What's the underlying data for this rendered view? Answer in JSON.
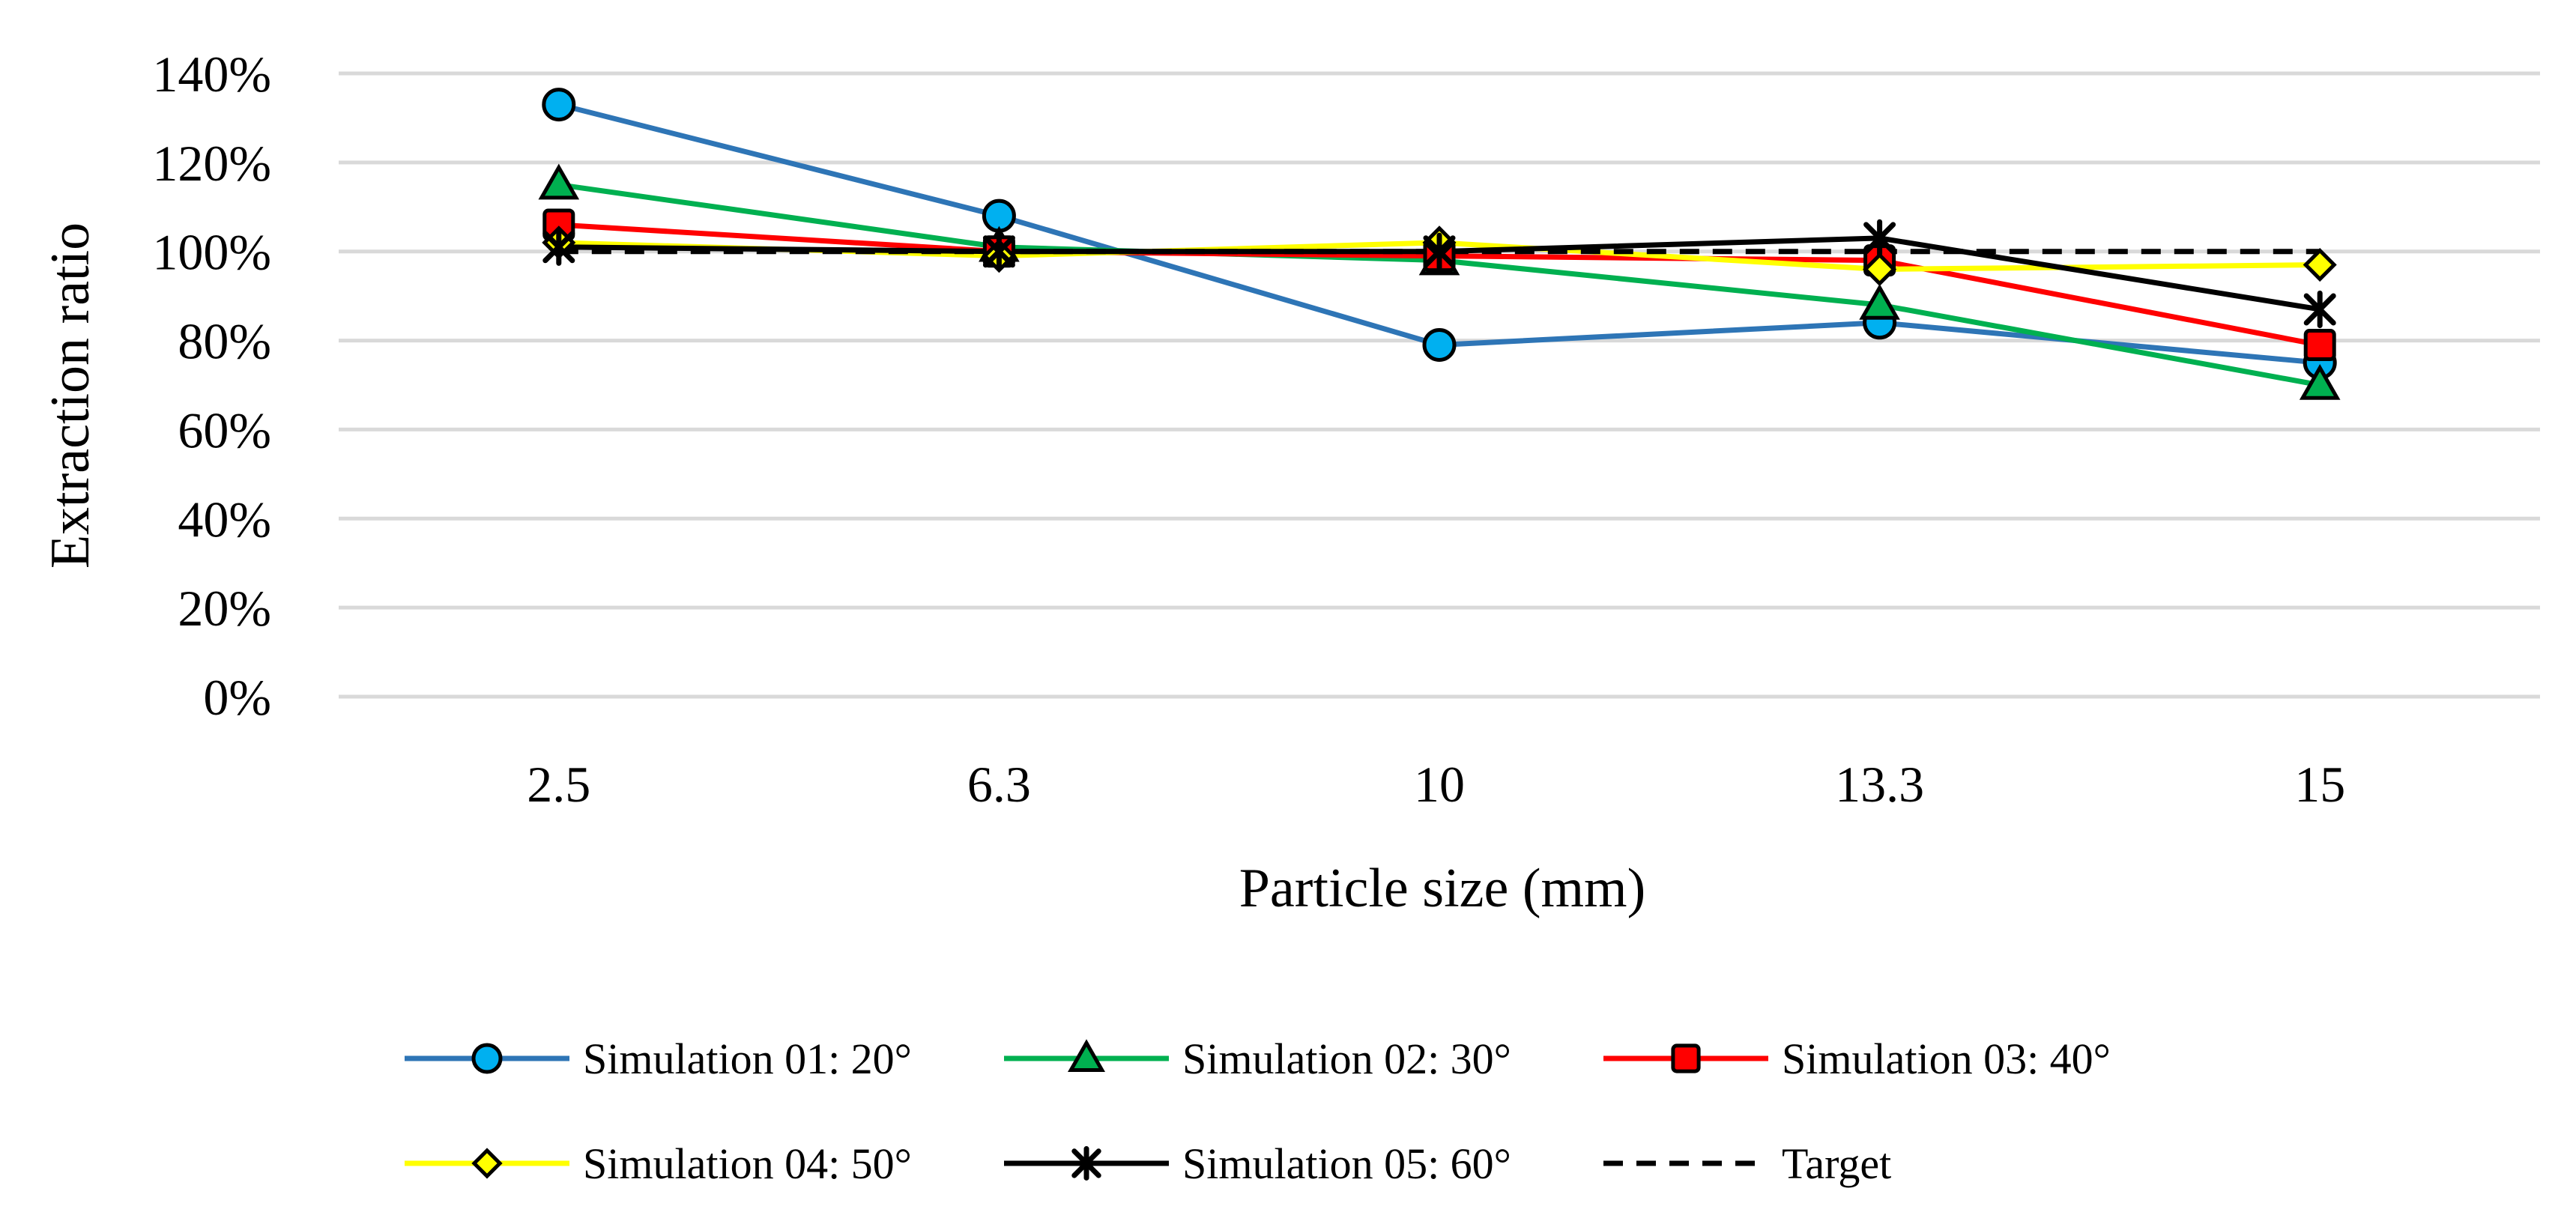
{
  "chart_data": {
    "type": "line",
    "title": "",
    "xlabel": "Particle size (mm)",
    "ylabel": "Extraction ratio",
    "categories": [
      "2.5",
      "6.3",
      "10",
      "13.3",
      "15"
    ],
    "ylim": [
      0,
      140
    ],
    "yticks": [
      0,
      20,
      40,
      60,
      80,
      100,
      120,
      140
    ],
    "ytick_labels": [
      "0%",
      "20%",
      "40%",
      "60%",
      "80%",
      "100%",
      "120%",
      "140%"
    ],
    "grid": true,
    "legend_position": "bottom",
    "series": [
      {
        "name": "Simulation 01: 20°",
        "color": "#2e75b6",
        "marker": "circle",
        "marker_color": "#00b0f0",
        "dashed": false,
        "values": [
          133,
          108,
          79,
          84,
          75
        ]
      },
      {
        "name": "Simulation 02: 30°",
        "color": "#00b050",
        "marker": "triangle",
        "marker_color": "#00b050",
        "dashed": false,
        "values": [
          115,
          101,
          98,
          88,
          70
        ]
      },
      {
        "name": "Simulation 03: 40°",
        "color": "#ff0000",
        "marker": "square",
        "marker_color": "#ff0000",
        "dashed": false,
        "values": [
          106,
          100,
          99,
          98,
          79
        ]
      },
      {
        "name": "Simulation 04: 50°",
        "color": "#ffff00",
        "marker": "diamond",
        "marker_color": "#ffff00",
        "dashed": false,
        "values": [
          102,
          99,
          102,
          96,
          97
        ]
      },
      {
        "name": "Simulation 05: 60°",
        "color": "#000000",
        "marker": "star",
        "marker_color": "#000000",
        "dashed": false,
        "values": [
          101,
          100,
          100,
          103,
          87
        ]
      },
      {
        "name": "Target",
        "color": "#000000",
        "marker": "none",
        "marker_color": "#000000",
        "dashed": true,
        "values": [
          100,
          100,
          100,
          100,
          100
        ]
      }
    ]
  }
}
